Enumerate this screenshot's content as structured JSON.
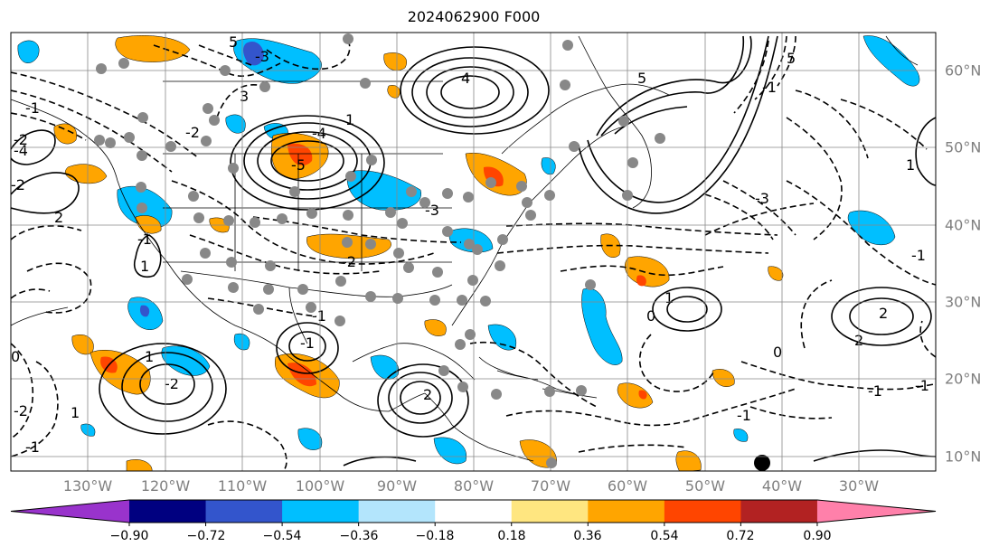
{
  "title": "2024062900 F000",
  "lon_ticks": [
    "130°W",
    "120°W",
    "110°W",
    "100°W",
    "90°W",
    "80°W",
    "70°W",
    "60°W",
    "50°W",
    "40°W",
    "30°W"
  ],
  "lat_ticks": [
    "60°N",
    "50°N",
    "40°N",
    "30°N",
    "20°N",
    "10°N"
  ],
  "colorbar": {
    "colors": [
      "#9933cc",
      "#000080",
      "#3355cc",
      "#00bfff",
      "#b3e5fc",
      "#ffffff",
      "#ffe680",
      "#ffa500",
      "#ff4500",
      "#b22222",
      "#ff80aa"
    ],
    "labels": [
      "−0.90",
      "−0.72",
      "−0.54",
      "−0.36",
      "−0.18",
      "0.18",
      "0.36",
      "0.54",
      "0.72",
      "0.90"
    ]
  },
  "contour_labels": [
    "5",
    "-3",
    "-2",
    "-1",
    "1",
    "4",
    "-4",
    "-5",
    "-2",
    "2",
    "-1",
    "1",
    "-2",
    "1",
    "2",
    "-1",
    "-3",
    "2",
    "-1",
    "-2",
    "1",
    "-1",
    "0",
    "-1",
    "-2",
    "1",
    "0",
    "-1",
    "-1",
    "0",
    "2",
    "-1",
    "-2",
    "1",
    "5",
    "-4",
    "-3",
    "-1",
    "3",
    "5"
  ]
}
